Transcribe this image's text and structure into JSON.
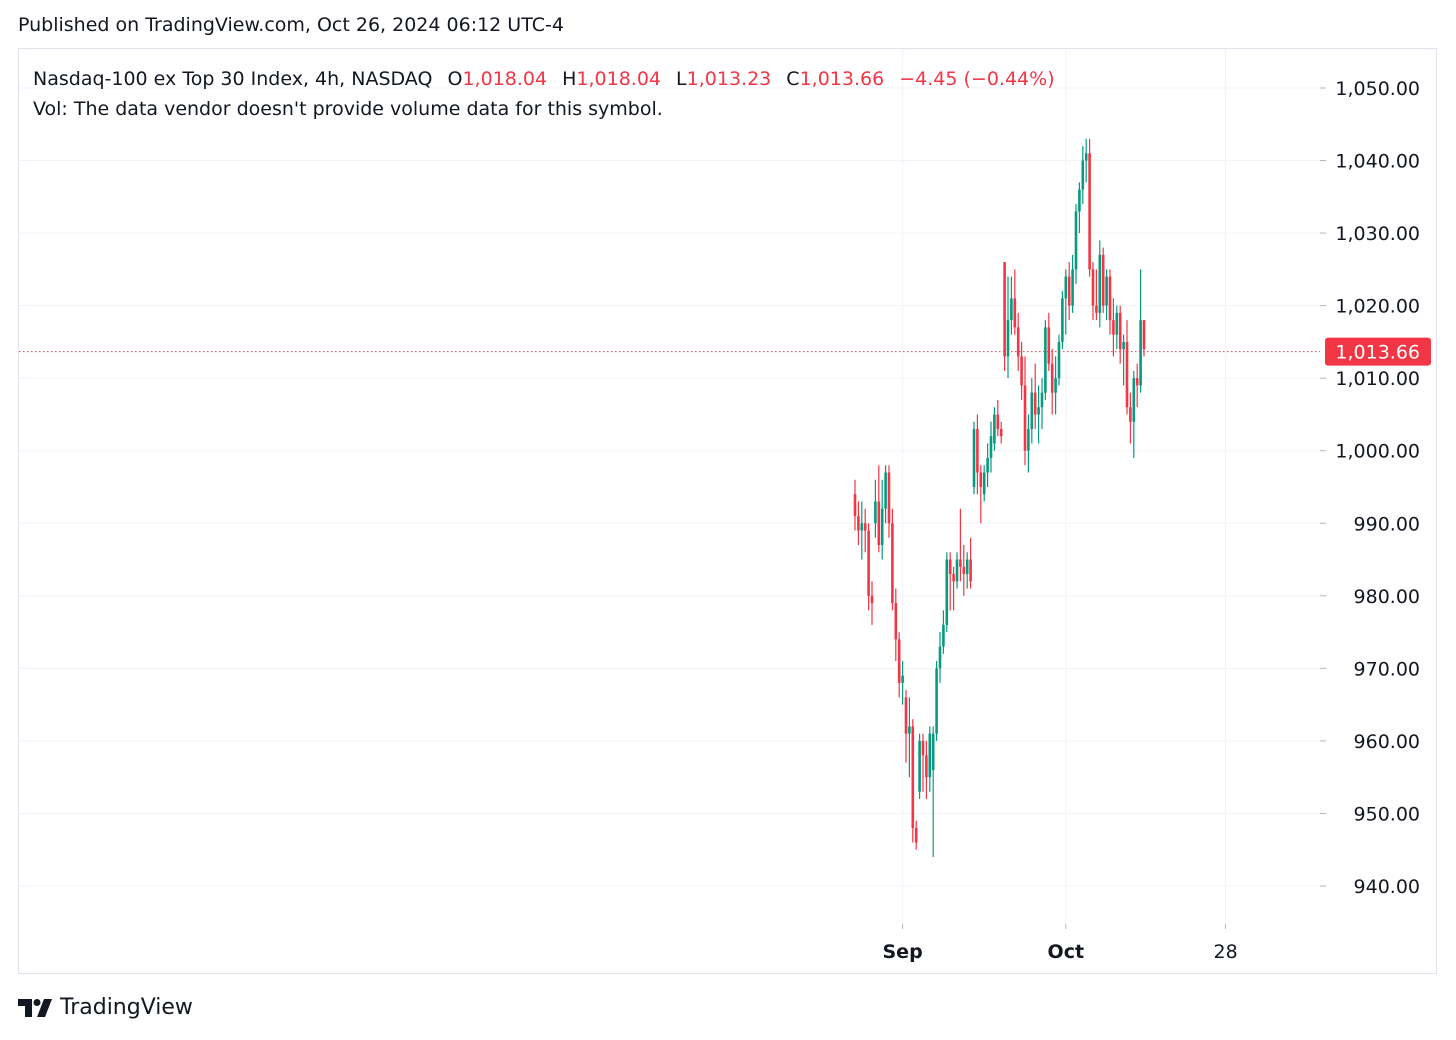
{
  "header": {
    "published": "Published on TradingView.com, Oct 26, 2024 06:12 UTC-4"
  },
  "legend": {
    "symbol": "Nasdaq-100 ex Top 30 Index, 4h, NASDAQ",
    "o_label": "O",
    "o_value": "1,018.04",
    "h_label": "H",
    "h_value": "1,018.04",
    "l_label": "L",
    "l_value": "1,013.23",
    "c_label": "C",
    "c_value": "1,013.66",
    "change": "−4.45 (−0.44%)",
    "vol_note": "Vol: The data vendor doesn't provide volume data for this symbol."
  },
  "footer": {
    "brand": "TradingView",
    "logo_icon": "tradingview-logo-icon"
  },
  "colors": {
    "up": "#089981",
    "down": "#f23645",
    "grid": "#f0f3fa",
    "text": "#131722"
  },
  "chart_data": {
    "type": "candlestick",
    "title": "Nasdaq-100 ex Top 30 Index, 4h, NASDAQ",
    "ylim": [
      934,
      1054
    ],
    "y_ticks": [
      940,
      950,
      960,
      970,
      980,
      990,
      1000,
      1010,
      1020,
      1030,
      1040,
      1050
    ],
    "y_tick_labels": [
      "940.00",
      "950.00",
      "960.00",
      "970.00",
      "980.00",
      "990.00",
      "1,000.00",
      "1,010.00",
      "1,020.00",
      "1,030.00",
      "1,040.00",
      "1,050.00"
    ],
    "x_labels": [
      {
        "label": "Sep",
        "bold": true,
        "index": 14
      },
      {
        "label": "Oct",
        "bold": true,
        "index": 62
      },
      {
        "label": "28",
        "bold": false,
        "index": 109
      }
    ],
    "last_price": 1013.66,
    "last_price_label": "1,013.66",
    "candles": [
      [
        994,
        996,
        989,
        991
      ],
      [
        991,
        993,
        987,
        989
      ],
      [
        989,
        993,
        985,
        990
      ],
      [
        990,
        992,
        986,
        989
      ],
      [
        989,
        990,
        978,
        980
      ],
      [
        980,
        982,
        976,
        979
      ],
      [
        990,
        996,
        988,
        993
      ],
      [
        993,
        998,
        986,
        987
      ],
      [
        987,
        996,
        985,
        992
      ],
      [
        992,
        998,
        990,
        997
      ],
      [
        997,
        998,
        988,
        990
      ],
      [
        990,
        992,
        978,
        979
      ],
      [
        979,
        981,
        971,
        974
      ],
      [
        974,
        975,
        966,
        968
      ],
      [
        968,
        971,
        965,
        969
      ],
      [
        966,
        967,
        957,
        961
      ],
      [
        961,
        966,
        955,
        962
      ],
      [
        962,
        963,
        946,
        948
      ],
      [
        948,
        949,
        945,
        946
      ],
      [
        953,
        961,
        952,
        960
      ],
      [
        960,
        961,
        953,
        958
      ],
      [
        958,
        960,
        952,
        955
      ],
      [
        955,
        962,
        953,
        961
      ],
      [
        956,
        962,
        944,
        961
      ],
      [
        961,
        971,
        960,
        970
      ],
      [
        970,
        975,
        968,
        973
      ],
      [
        973,
        978,
        972,
        976
      ],
      [
        976,
        986,
        975,
        985
      ],
      [
        985,
        986,
        978,
        983
      ],
      [
        983,
        984,
        978,
        982
      ],
      [
        982,
        986,
        981,
        985
      ],
      [
        985,
        992,
        982,
        984
      ],
      [
        984,
        987,
        980,
        983
      ],
      [
        983,
        986,
        981,
        985
      ],
      [
        985,
        988,
        981,
        982
      ],
      [
        995,
        1004,
        994,
        1003
      ],
      [
        1003,
        1005,
        994,
        997
      ],
      [
        997,
        998,
        990,
        995
      ],
      [
        994,
        998,
        993,
        997
      ],
      [
        997,
        1001,
        995,
        999
      ],
      [
        999,
        1004,
        997,
        1002
      ],
      [
        1001,
        1006,
        1000,
        1005
      ],
      [
        1005,
        1007,
        1002,
        1003
      ],
      [
        1003,
        1004,
        1001,
        1002
      ],
      [
        1026,
        1026,
        1011,
        1013
      ],
      [
        1013,
        1024,
        1010,
        1018
      ],
      [
        1018,
        1024,
        1016,
        1021
      ],
      [
        1021,
        1025,
        1016,
        1017
      ],
      [
        1017,
        1019,
        1011,
        1013
      ],
      [
        1013,
        1015,
        1007,
        1009
      ],
      [
        1009,
        1013,
        998,
        1000
      ],
      [
        1000,
        1005,
        997,
        1003
      ],
      [
        1003,
        1010,
        1001,
        1008
      ],
      [
        1008,
        1012,
        1003,
        1005
      ],
      [
        1005,
        1009,
        1001,
        1006
      ],
      [
        1006,
        1010,
        1003,
        1008
      ],
      [
        1008,
        1018,
        1007,
        1017
      ],
      [
        1017,
        1019,
        1011,
        1012
      ],
      [
        1012,
        1014,
        1005,
        1008
      ],
      [
        1008,
        1013,
        1005,
        1010
      ],
      [
        1010,
        1016,
        1009,
        1015
      ],
      [
        1015,
        1022,
        1014,
        1021
      ],
      [
        1021,
        1025,
        1016,
        1024
      ],
      [
        1024,
        1026,
        1018,
        1020
      ],
      [
        1020,
        1027,
        1019,
        1025
      ],
      [
        1025,
        1034,
        1023,
        1033
      ],
      [
        1033,
        1037,
        1030,
        1036
      ],
      [
        1036,
        1042,
        1034,
        1040
      ],
      [
        1040,
        1043,
        1037,
        1041
      ],
      [
        1041,
        1043,
        1024,
        1025
      ],
      [
        1025,
        1026,
        1018,
        1020
      ],
      [
        1020,
        1025,
        1018,
        1019
      ],
      [
        1019,
        1029,
        1017,
        1027
      ],
      [
        1027,
        1028,
        1019,
        1020
      ],
      [
        1020,
        1025,
        1018,
        1024
      ],
      [
        1024,
        1025,
        1016,
        1018
      ],
      [
        1018,
        1021,
        1013,
        1016
      ],
      [
        1016,
        1020,
        1014,
        1019
      ],
      [
        1019,
        1020,
        1012,
        1014
      ],
      [
        1014,
        1016,
        1009,
        1015
      ],
      [
        1015,
        1018,
        1005,
        1006
      ],
      [
        1006,
        1008,
        1001,
        1004
      ],
      [
        1004,
        1011,
        999,
        1010
      ],
      [
        1010,
        1012,
        1006,
        1009
      ],
      [
        1009,
        1025,
        1008,
        1018
      ],
      [
        1018,
        1018,
        1013,
        1014
      ]
    ]
  }
}
